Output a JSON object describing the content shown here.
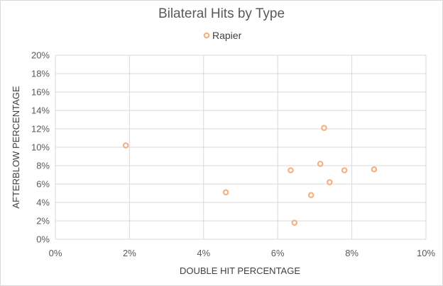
{
  "chart_data": {
    "type": "scatter",
    "title": "Bilateral Hits by Type",
    "xlabel": "DOUBLE HIT PERCENTAGE",
    "ylabel": "AFTERBLOW PERCENTAGE",
    "xlim": [
      0,
      10
    ],
    "ylim": [
      0,
      20
    ],
    "x_ticks": [
      "0%",
      "2%",
      "4%",
      "6%",
      "8%",
      "10%"
    ],
    "y_ticks": [
      "0%",
      "2%",
      "4%",
      "6%",
      "8%",
      "10%",
      "12%",
      "14%",
      "16%",
      "18%",
      "20%"
    ],
    "grid": true,
    "legend_position": "top",
    "series": [
      {
        "name": "Rapier",
        "color": "#f4b183",
        "points": [
          {
            "x": 1.9,
            "y": 10.2
          },
          {
            "x": 4.6,
            "y": 5.1
          },
          {
            "x": 6.35,
            "y": 7.5
          },
          {
            "x": 6.45,
            "y": 1.8
          },
          {
            "x": 6.9,
            "y": 4.8
          },
          {
            "x": 7.15,
            "y": 8.2
          },
          {
            "x": 7.25,
            "y": 12.1
          },
          {
            "x": 7.4,
            "y": 6.2
          },
          {
            "x": 7.8,
            "y": 7.5
          },
          {
            "x": 8.6,
            "y": 7.6
          }
        ]
      }
    ]
  }
}
